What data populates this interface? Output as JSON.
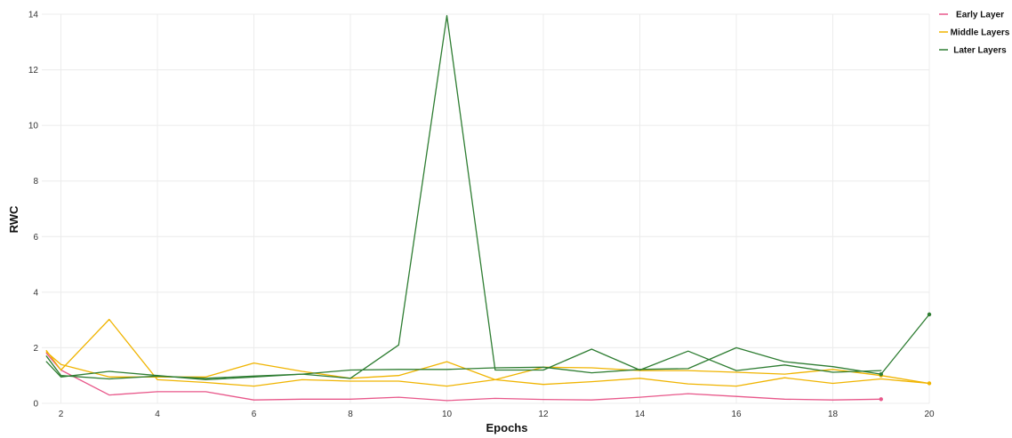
{
  "chart_data": {
    "type": "line",
    "title": "",
    "xlabel": "Epochs",
    "ylabel": "RWC",
    "xlim": [
      1.7,
      20
    ],
    "ylim": [
      0,
      14
    ],
    "x_ticks": [
      2,
      4,
      6,
      8,
      10,
      12,
      14,
      16,
      18,
      20
    ],
    "y_ticks": [
      0,
      2,
      4,
      6,
      8,
      10,
      12,
      14
    ],
    "grid": true,
    "legend_position": "top-right",
    "series": [
      {
        "name": "Early Layer",
        "color": "#e8578a",
        "lines": [
          {
            "x": [
              1.7,
              2,
              3,
              4,
              5,
              6,
              7,
              8,
              9,
              10,
              11,
              12,
              13,
              14,
              15,
              16,
              17,
              18,
              19
            ],
            "y": [
              1.8,
              1.2,
              0.3,
              0.42,
              0.42,
              0.12,
              0.15,
              0.15,
              0.22,
              0.1,
              0.18,
              0.14,
              0.12,
              0.22,
              0.35,
              0.25,
              0.15,
              0.12,
              0.15
            ]
          }
        ],
        "end_markers": [
          {
            "x": 19,
            "y": 0.15
          }
        ]
      },
      {
        "name": "Middle Layers",
        "color": "#f0b400",
        "lines": [
          {
            "x": [
              1.7,
              2,
              3,
              4,
              5,
              6,
              7,
              8,
              9,
              10,
              11,
              12,
              13,
              14,
              15,
              16,
              17,
              18,
              19,
              20
            ],
            "y": [
              1.9,
              1.2,
              3.02,
              0.85,
              0.75,
              0.62,
              0.85,
              0.8,
              0.8,
              0.62,
              0.85,
              1.3,
              1.28,
              1.18,
              1.18,
              1.12,
              1.05,
              1.22,
              1.0,
              0.72
            ]
          },
          {
            "x": [
              1.7,
              2,
              3,
              4,
              5,
              6,
              7,
              8,
              9,
              10,
              11,
              12,
              13,
              14,
              15,
              16,
              17,
              18,
              19,
              20
            ],
            "y": [
              1.85,
              1.4,
              0.95,
              0.95,
              0.95,
              1.45,
              1.15,
              0.9,
              1.0,
              1.5,
              0.85,
              0.68,
              0.78,
              0.9,
              0.7,
              0.62,
              0.92,
              0.72,
              0.88,
              0.72
            ]
          }
        ],
        "end_markers": [
          {
            "x": 19,
            "y": 1.0
          },
          {
            "x": 20,
            "y": 0.72
          }
        ]
      },
      {
        "name": "Later Layers",
        "color": "#2e7d32",
        "lines": [
          {
            "x": [
              1.7,
              2,
              3,
              4,
              5,
              6,
              7,
              8,
              9,
              10,
              11,
              12,
              13,
              14,
              15,
              16,
              17,
              18,
              19
            ],
            "y": [
              1.5,
              0.95,
              1.15,
              1.0,
              0.85,
              0.95,
              1.05,
              0.9,
              2.1,
              13.95,
              1.2,
              1.2,
              1.95,
              1.2,
              1.88,
              1.18,
              1.38,
              1.12,
              1.18
            ]
          },
          {
            "x": [
              1.7,
              2,
              3,
              4,
              5,
              6,
              7,
              8,
              9,
              10,
              11,
              12,
              13,
              14,
              15,
              16,
              17,
              18,
              19,
              20
            ],
            "y": [
              1.7,
              1.0,
              0.88,
              0.98,
              0.9,
              0.98,
              1.05,
              1.2,
              1.22,
              1.22,
              1.28,
              1.3,
              1.1,
              1.22,
              1.25,
              2.0,
              1.5,
              1.32,
              1.05,
              3.2
            ]
          }
        ],
        "end_markers": [
          {
            "x": 19,
            "y": 1.05
          },
          {
            "x": 20,
            "y": 3.2
          }
        ]
      }
    ]
  }
}
